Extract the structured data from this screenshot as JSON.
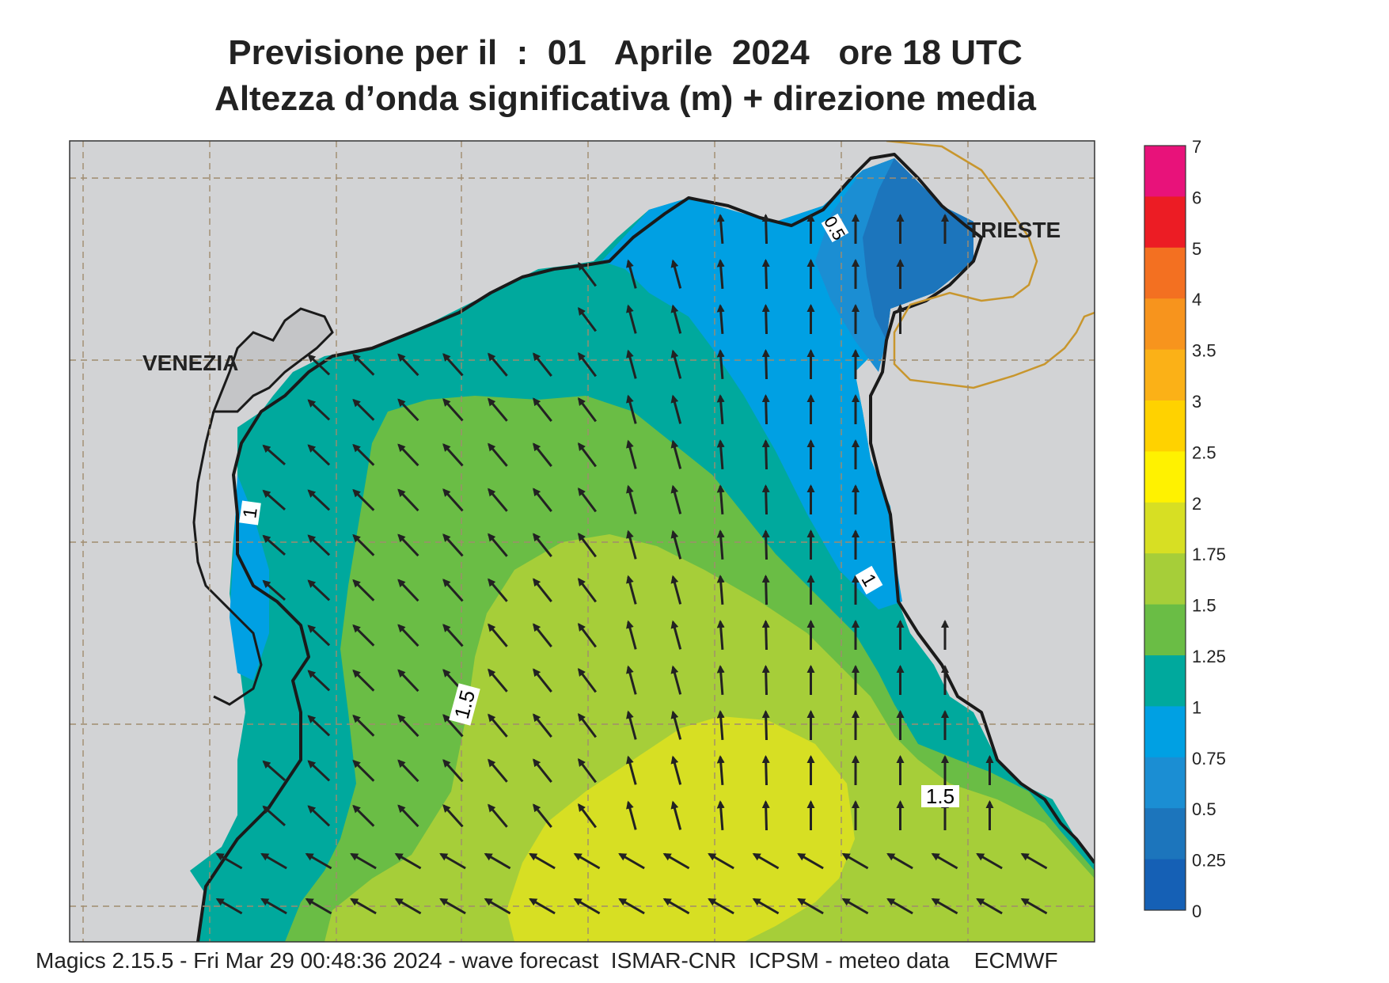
{
  "title": {
    "line1": "Previsione per il  :  01   Aprile  2024   ore 18 UTC",
    "line2": "Altezza d’onda significativa (m) + direzione media"
  },
  "map": {
    "city_labels": [
      "VENEZIA",
      "TRIESTE"
    ],
    "contour_labels": [
      "1",
      "1",
      "1.5",
      "1.5",
      "0.5"
    ],
    "wave_direction": "north-west (predominant)",
    "colors": {
      "land": "#d2d3d5",
      "coast": "#1a1a1a",
      "border": "#c8962d"
    }
  },
  "legend": {
    "labels": [
      "7",
      "6",
      "5",
      "4",
      "3.5",
      "3",
      "2.5",
      "2",
      "1.75",
      "1.5",
      "1.25",
      "1",
      "0.75",
      "0.5",
      "0.25",
      "0"
    ],
    "colors": [
      "#e8127a",
      "#ec1c24",
      "#f37021",
      "#f7941d",
      "#fbb117",
      "#ffd200",
      "#fff200",
      "#d7df23",
      "#a6ce39",
      "#6abd45",
      "#00a99d",
      "#00a0e3",
      "#1b8ed3",
      "#1c75bc",
      "#1560b5"
    ]
  },
  "footer": "Magics 2.15.5 - Fri Mar 29 00:48:36 2024 - wave forecast  ISMAR-CNR  ICPSM - meteo data    ECMWF"
}
